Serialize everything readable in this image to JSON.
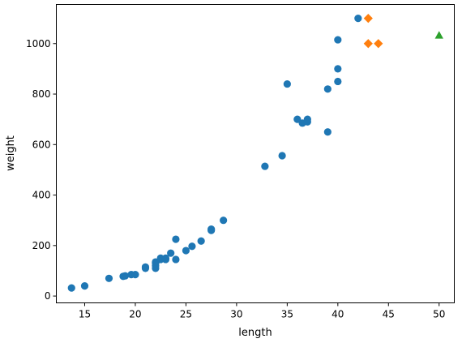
{
  "chart_data": {
    "type": "scatter",
    "xlabel": "length",
    "ylabel": "weight",
    "xlim": [
      12.2,
      51.5
    ],
    "ylim": [
      -27,
      1155
    ],
    "xticks": [
      15,
      20,
      25,
      30,
      35,
      40,
      45,
      50
    ],
    "yticks": [
      0,
      200,
      400,
      600,
      800,
      1000
    ],
    "grid": false,
    "series": [
      {
        "marker": "circle",
        "color": "#1f77b4",
        "points": [
          [
            13.7,
            32
          ],
          [
            15.0,
            40
          ],
          [
            17.4,
            70
          ],
          [
            18.8,
            78
          ],
          [
            19.0,
            80
          ],
          [
            19.6,
            85
          ],
          [
            20.0,
            85
          ],
          [
            21.0,
            110
          ],
          [
            21.0,
            115
          ],
          [
            22.0,
            110
          ],
          [
            22.0,
            120
          ],
          [
            22.0,
            130
          ],
          [
            22.0,
            135
          ],
          [
            22.5,
            145
          ],
          [
            22.5,
            150
          ],
          [
            23.0,
            145
          ],
          [
            23.0,
            150
          ],
          [
            23.5,
            170
          ],
          [
            24.0,
            145
          ],
          [
            24.0,
            225
          ],
          [
            25.0,
            180
          ],
          [
            25.6,
            197
          ],
          [
            26.5,
            218
          ],
          [
            27.5,
            260
          ],
          [
            27.5,
            265
          ],
          [
            28.7,
            300
          ],
          [
            32.8,
            514
          ],
          [
            34.5,
            556
          ],
          [
            35.0,
            840
          ],
          [
            36.0,
            700
          ],
          [
            36.5,
            685
          ],
          [
            37.0,
            690
          ],
          [
            37.0,
            700
          ],
          [
            39.0,
            650
          ],
          [
            39.0,
            820
          ],
          [
            40.0,
            850
          ],
          [
            40.0,
            900
          ],
          [
            40.0,
            1015
          ],
          [
            42.0,
            1100
          ]
        ]
      },
      {
        "marker": "diamond",
        "color": "#ff7f0e",
        "points": [
          [
            43.0,
            1100
          ],
          [
            43.0,
            1000
          ],
          [
            44.0,
            1000
          ]
        ]
      },
      {
        "marker": "triangle",
        "color": "#2ca02c",
        "points": [
          [
            50.0,
            1033
          ]
        ]
      }
    ]
  }
}
